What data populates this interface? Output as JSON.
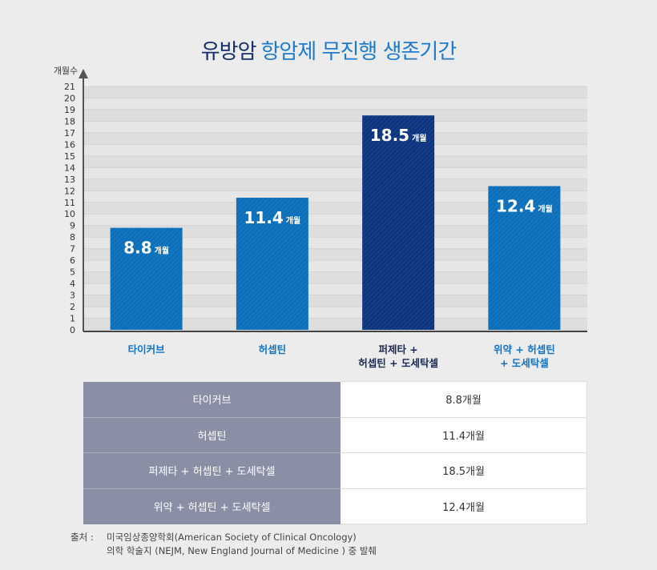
{
  "title": {
    "part1": "유방암",
    "part2": "항암제 무진행 생존기간"
  },
  "chart_data": {
    "type": "bar",
    "ylabel": "개월수",
    "ylim": [
      0,
      21
    ],
    "yticks": [
      0,
      1,
      2,
      3,
      4,
      5,
      6,
      7,
      8,
      9,
      10,
      11,
      12,
      13,
      14,
      15,
      16,
      17,
      18,
      19,
      20,
      21
    ],
    "grid": true,
    "categories": [
      [
        "타이커브"
      ],
      [
        "허셉틴"
      ],
      [
        "퍼제타 +",
        "허셉틴 + 도세탁셀"
      ],
      [
        "위약 + 허셉틴",
        "+ 도세탁셀"
      ]
    ],
    "values": [
      8.8,
      11.4,
      18.5,
      12.4
    ],
    "value_labels": [
      "8.8",
      "11.4",
      "18.5",
      "12.4"
    ],
    "unit": "개월",
    "colors": [
      "#0b6fba",
      "#0b6fba",
      "#0c3580",
      "#0b6fba"
    ],
    "label_colors": [
      "#1273c4",
      "#1273c4",
      "#1a2a55",
      "#1273c4"
    ]
  },
  "table": {
    "rows": [
      {
        "label": "타이커브",
        "value": "8.8개월"
      },
      {
        "label": "허셉틴",
        "value": "11.4개월"
      },
      {
        "label": "퍼제타 + 허셉틴 + 도세탁셀",
        "value": "18.5개월"
      },
      {
        "label": "위약 + 허셉틴 + 도세탁셀",
        "value": "12.4개월"
      }
    ]
  },
  "source": {
    "label": "출처 :",
    "line1": "미국임상종양학회(American Society of Clinical Oncology)",
    "line2": "의학 학술지 (NEJM, New England Journal of Medicine ) 중 발췌"
  }
}
